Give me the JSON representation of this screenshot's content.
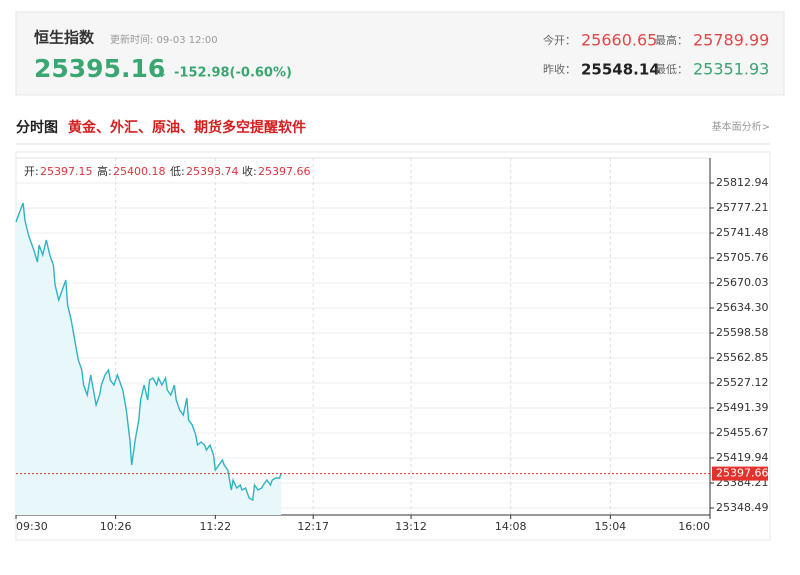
{
  "header": {
    "name": "恒生指数",
    "update": "更新时间: 09-03 12:00",
    "price": "25395.16",
    "arrow": "↓",
    "change": "-152.98(-0.60%)",
    "open_label": "今开：",
    "open": "25660.65",
    "high_label": "最高：",
    "high": "25789.99",
    "prev_label": "昨收：",
    "prev": "25548.14",
    "low_label": "最低：",
    "low": "25351.93"
  },
  "section": {
    "title": "分时图",
    "promo": "黄金、外汇、原油、期货多空提醒软件",
    "link": "基本面分析>"
  },
  "chart_data": {
    "type": "line",
    "info": [
      {
        "label": "开:",
        "value": "25397.15"
      },
      {
        "label": "高:",
        "value": "25400.18"
      },
      {
        "label": "低:",
        "value": "25393.74"
      },
      {
        "label": "收:",
        "value": "25397.66"
      }
    ],
    "xlim": [
      "09:30",
      "16:00"
    ],
    "xticks": [
      "09:30",
      "10:26",
      "11:22",
      "12:17",
      "13:12",
      "14:08",
      "15:04",
      "16:00"
    ],
    "ylim": [
      25338.49,
      25848.67
    ],
    "yticks": [
      25812.94,
      25777.21,
      25741.48,
      25705.76,
      25670.03,
      {
        "value": 25634.3,
        "label": "25634.30"
      },
      25598.58,
      25562.85,
      25527.12,
      25491.39,
      25455.67,
      25419.94,
      25384.21,
      25348.49
    ],
    "grid": true,
    "price_marker": 25397.66,
    "color": "#2fb3c4",
    "area_color": "#e8f7fa",
    "marker_color": "#e3312d",
    "x": [
      "09:30",
      "09:32",
      "09:34",
      "09:35",
      "09:37",
      "09:38",
      "09:40",
      "09:42",
      "09:43",
      "09:45",
      "09:47",
      "09:49",
      "09:51",
      "09:52",
      "09:54",
      "09:56",
      "09:58",
      "09:59",
      "10:01",
      "10:03",
      "10:05",
      "10:07",
      "10:08",
      "10:10",
      "10:12",
      "10:13",
      "10:15",
      "10:17",
      "10:18",
      "10:20",
      "10:22",
      "10:23",
      "10:25",
      "10:27",
      "10:28",
      "10:30",
      "10:32",
      "10:34",
      "10:35",
      "10:37",
      "10:39",
      "10:40",
      "10:42",
      "10:44",
      "10:45",
      "10:47",
      "10:49",
      "10:50",
      "10:52",
      "10:54",
      "10:55",
      "10:57",
      "10:59",
      "11:00",
      "11:02",
      "11:04",
      "11:06",
      "11:07",
      "11:09",
      "11:11",
      "11:12",
      "11:14",
      "11:16",
      "11:17",
      "11:19",
      "11:21",
      "11:22",
      "11:24",
      "11:26",
      "11:27",
      "11:29",
      "11:31",
      "11:32",
      "11:34",
      "11:36",
      "11:37",
      "11:39",
      "11:41",
      "11:43",
      "11:44",
      "11:46",
      "11:48",
      "11:49",
      "11:51",
      "11:53",
      "11:54",
      "11:56",
      "11:58",
      "11:59"
    ],
    "values": [
      25757.2,
      25771.49,
      25784.36,
      25760.06,
      25738.62,
      25731.48,
      25717.18,
      25700.03,
      25724.33,
      25710.04,
      25731.48,
      25710.04,
      25695.75,
      25667.16,
      25645.72,
      25660.02,
      25674.31,
      25638.58,
      25617.14,
      25588.56,
      25559.97,
      25545.68,
      25524.24,
      25509.95,
      25538.53,
      25524.24,
      25495.66,
      25509.95,
      25524.24,
      25538.53,
      25545.68,
      25531.39,
      25524.24,
      25538.53,
      25531.39,
      25517.1,
      25488.51,
      25445.64,
      25409.91,
      25445.64,
      25474.22,
      25502.8,
      25524.24,
      25502.8,
      25531.39,
      25534.25,
      25524.24,
      25534.25,
      25524.24,
      25534.25,
      25517.1,
      25509.95,
      25524.24,
      25502.8,
      25488.51,
      25481.37,
      25505.66,
      25474.22,
      25467.07,
      25452.78,
      25438.49,
      25442.78,
      25438.49,
      25431.34,
      25438.49,
      25424.2,
      25402.76,
      25409.91,
      25417.05,
      25409.91,
      25402.76,
      25374.18,
      25388.47,
      25377.03,
      25381.32,
      25374.18,
      25377.03,
      25362.74,
      25359.88,
      25381.32,
      25374.18,
      25377.03,
      25381.32,
      25388.47,
      25381.32,
      25388.47,
      25391.33,
      25391.33,
      25397.66
    ]
  }
}
